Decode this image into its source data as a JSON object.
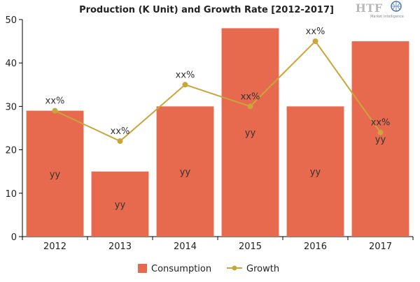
{
  "colors": {
    "bar": "#E86A4E",
    "line": "#C9A53A",
    "axis": "#000000",
    "grid": "#E6E6E6",
    "logo": "#B8B8B8",
    "logo_accent": "#4B78B8"
  },
  "icons": {
    "logo": "htf-logo-icon"
  },
  "logo": {
    "main": "HTF",
    "sub": "Market Intelligence"
  },
  "chart_data": {
    "type": "bar",
    "title": "Production (K Unit) and Growth Rate [2012-2017]",
    "categories": [
      "2012",
      "2013",
      "2014",
      "2015",
      "2016",
      "2017"
    ],
    "ylim": [
      0,
      50
    ],
    "yticks": [
      0,
      10,
      20,
      30,
      40,
      50
    ],
    "grid": false,
    "legend_position": "bottom",
    "series": [
      {
        "name": "Consumption",
        "type": "bar",
        "values": [
          29,
          15,
          30,
          48,
          30,
          45
        ],
        "labels": [
          "yy",
          "yy",
          "yy",
          "yy",
          "yy",
          "yy"
        ]
      },
      {
        "name": "Growth",
        "type": "line",
        "values": [
          29,
          22,
          35,
          30,
          45,
          24
        ],
        "labels": [
          "xx%",
          "xx%",
          "xx%",
          "xx%",
          "xx%",
          "xx%"
        ]
      }
    ]
  }
}
